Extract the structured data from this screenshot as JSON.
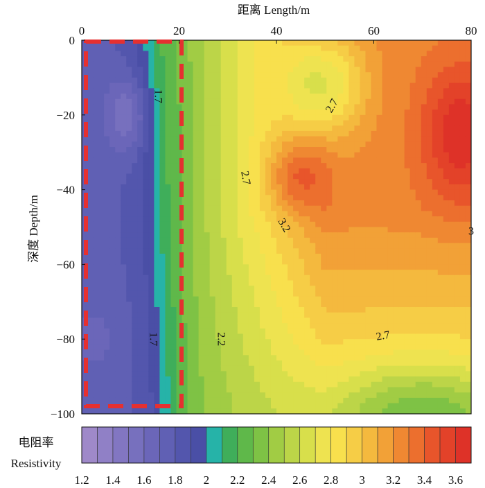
{
  "chart_data": {
    "type": "heatmap",
    "title": "",
    "xlabel": "距离 Length/m",
    "ylabel": "深度 Depth/m",
    "xlim": [
      0,
      80
    ],
    "ylim": [
      -100,
      0
    ],
    "xticks": [
      "0",
      "20",
      "40",
      "60",
      "80"
    ],
    "yticks": [
      "0",
      "-20",
      "-40",
      "-60",
      "-80",
      "-100"
    ],
    "colorbar": {
      "label_zh": "电阻率",
      "label_en": "Resistivity",
      "range": [
        1.2,
        3.7
      ],
      "ticks": [
        "1.2",
        "1.4",
        "1.6",
        "1.8",
        "2",
        "2.2",
        "2.4",
        "2.6",
        "2.8",
        "3",
        "3.2",
        "3.4",
        "3.6"
      ],
      "levels": [
        1.2,
        1.3,
        1.4,
        1.5,
        1.6,
        1.7,
        1.8,
        1.9,
        2.0,
        2.1,
        2.2,
        2.3,
        2.4,
        2.5,
        2.6,
        2.7,
        2.8,
        2.9,
        3.0,
        3.1,
        3.2,
        3.3,
        3.4,
        3.5,
        3.6
      ],
      "colors": [
        "#9f89c9",
        "#9080c6",
        "#8276c2",
        "#7770be",
        "#6b66b9",
        "#6060b4",
        "#5356ad",
        "#4a4fa6",
        "#26b3a8",
        "#3fae5a",
        "#5fb84a",
        "#7ec245",
        "#a1cc44",
        "#bcd548",
        "#d8df4b",
        "#eee350",
        "#f8e04d",
        "#f6cd46",
        "#f4b93e",
        "#f2a137",
        "#ef8832",
        "#ec6f2e",
        "#e8552b",
        "#e34229",
        "#de3228"
      ]
    },
    "contour_labels": [
      "1.7",
      "1.7",
      "2.7",
      "2.7",
      "3.2",
      "3",
      "2.2",
      "2.7"
    ],
    "annotation": "red dashed rectangle x 0-20 m, depth 0 to -100 m (low-resistivity zone)"
  }
}
